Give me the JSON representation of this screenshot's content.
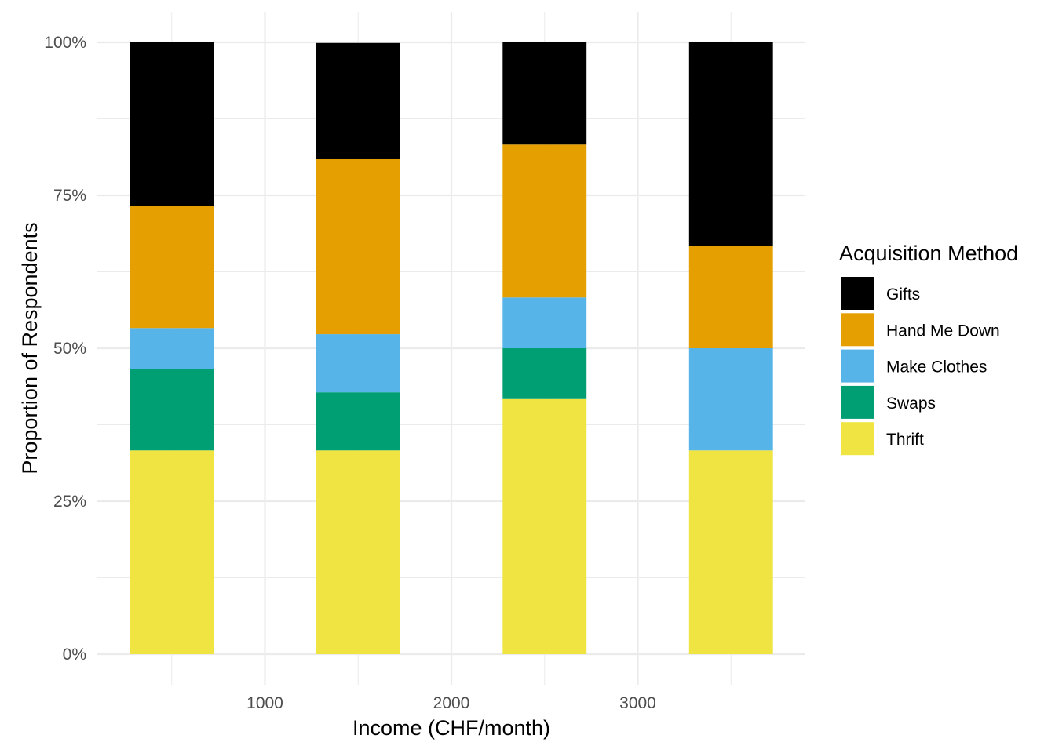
{
  "chart_data": {
    "type": "bar",
    "stacked": true,
    "normalized": true,
    "xlabel": "Income (CHF/month)",
    "ylabel": "Proportion of Respondents",
    "x_ticks": [
      1000,
      2000,
      3000
    ],
    "x_ticks_labels": [
      "1000",
      "2000",
      "3000"
    ],
    "xlim": [
      0,
      4000
    ],
    "ylim": [
      0,
      1
    ],
    "y_ticks": [
      0,
      0.25,
      0.5,
      0.75,
      1.0
    ],
    "y_tick_labels": [
      "0%",
      "25%",
      "50%",
      "75%",
      "100%"
    ],
    "grid": true,
    "bar_positions": [
      500,
      1500,
      2500,
      3500
    ],
    "bar_width": 450,
    "legend": {
      "title": "Acquisition Method",
      "position": "right"
    },
    "series": [
      {
        "name": "Gifts",
        "color": "#000000",
        "values": [
          0.267,
          0.19,
          0.167,
          0.333
        ]
      },
      {
        "name": "Hand Me Down",
        "color": "#E69F00",
        "values": [
          0.2,
          0.286,
          0.25,
          0.167
        ]
      },
      {
        "name": "Make Clothes",
        "color": "#56B4E9",
        "values": [
          0.067,
          0.095,
          0.083,
          0.167
        ]
      },
      {
        "name": "Swaps",
        "color": "#009E73",
        "values": [
          0.133,
          0.095,
          0.083,
          0.0
        ]
      },
      {
        "name": "Thrift",
        "color": "#F0E442",
        "values": [
          0.333,
          0.333,
          0.417,
          0.333
        ]
      }
    ]
  }
}
